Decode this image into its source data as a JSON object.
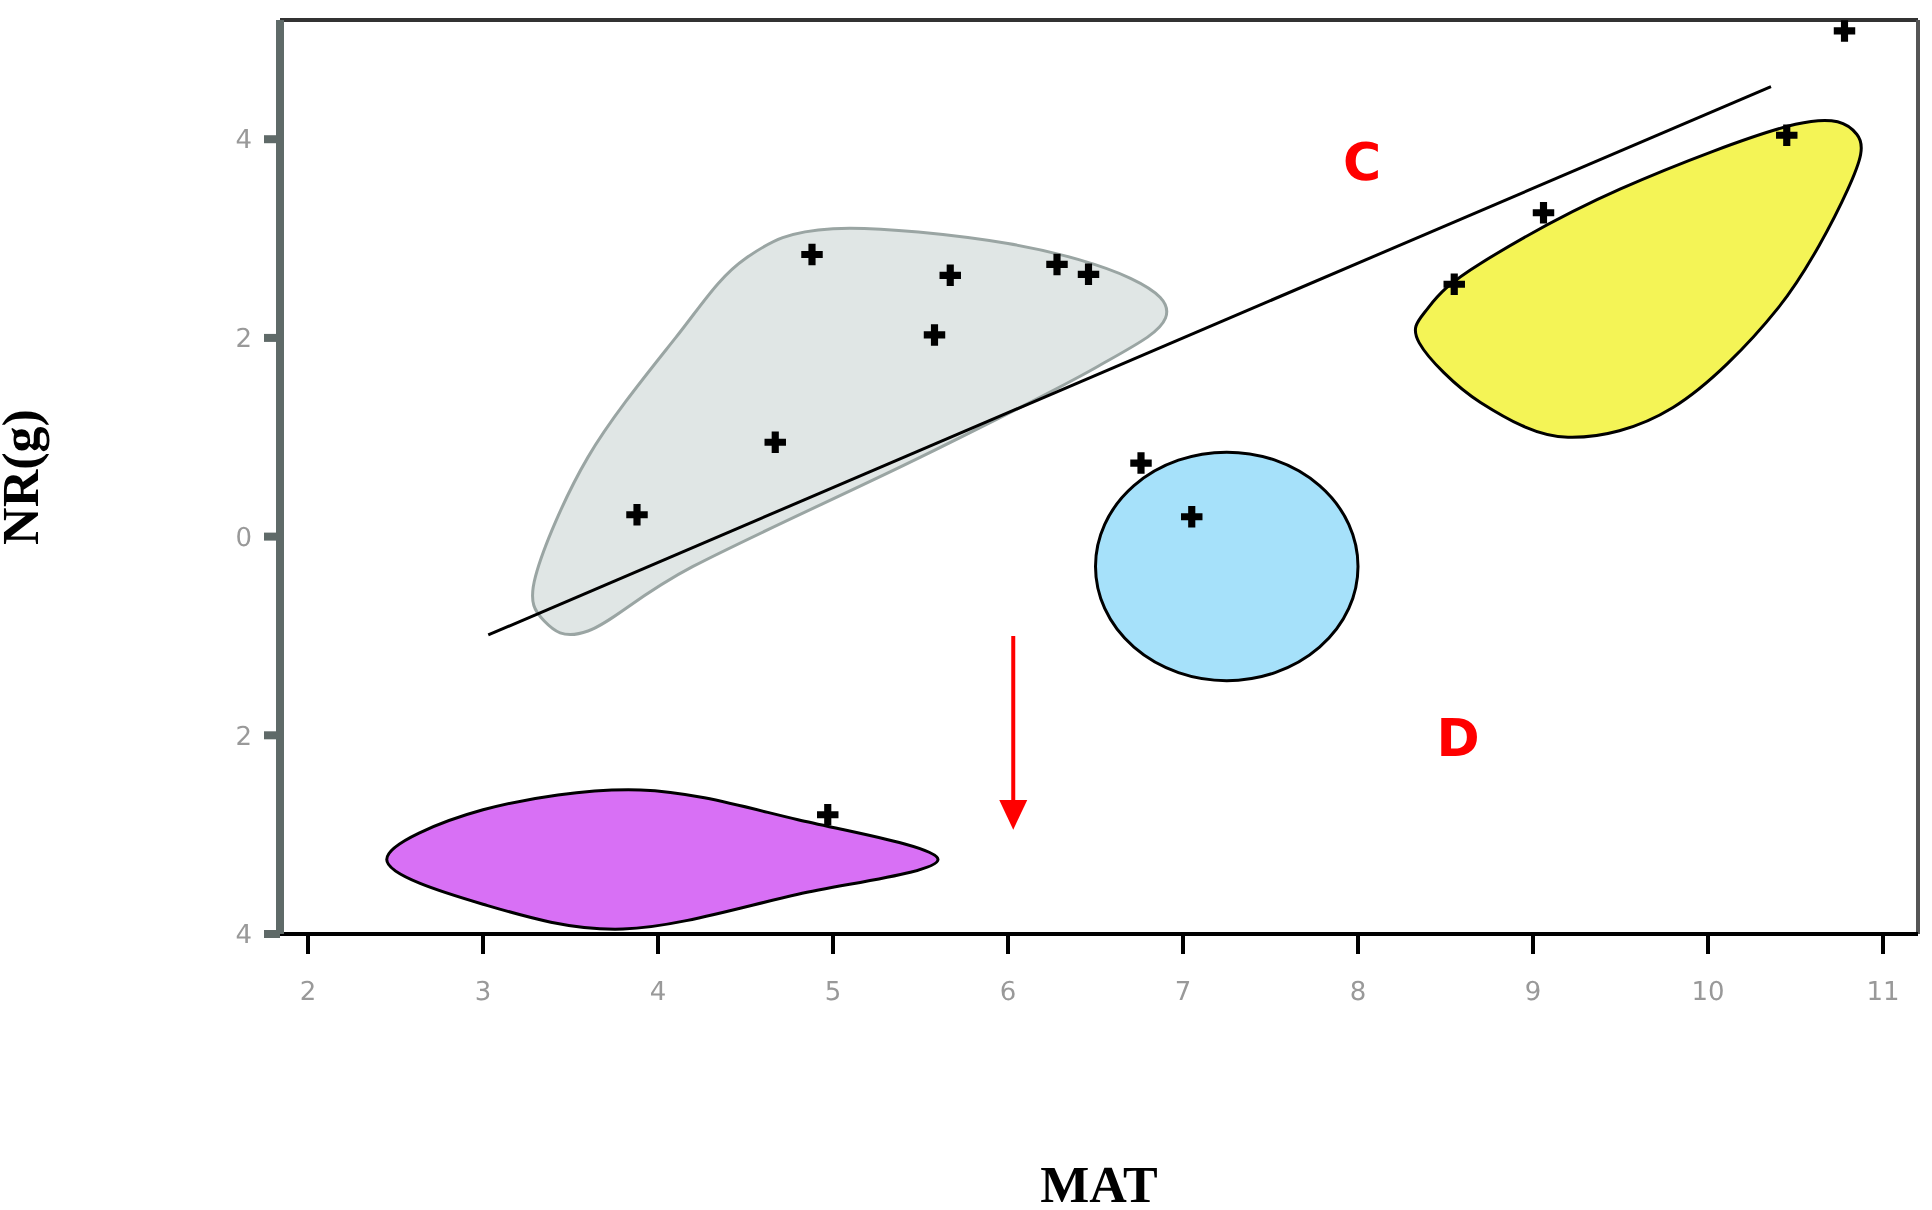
{
  "chart_data": {
    "type": "scatter",
    "xlabel": "MAT",
    "ylabel": "NR(g)",
    "xlim": [
      1.84,
      11.2
    ],
    "xticks": [
      2,
      3,
      4,
      5,
      6,
      7,
      8,
      9,
      10,
      11
    ],
    "ylim": [
      -4,
      5.2
    ],
    "yticks": [
      4,
      2,
      0,
      {
        "value": -2,
        "label": "2"
      },
      {
        "value": -4,
        "label": "4"
      }
    ],
    "series": [
      {
        "color": "#000000",
        "marker": "cross",
        "x": [
          3.88,
          4.67,
          4.88,
          5.67,
          5.58,
          6.28,
          6.46,
          7.05,
          6.76,
          8.55,
          9.06,
          10.45,
          10.78,
          4.97
        ],
        "values": [
          0.22,
          0.95,
          2.84,
          2.63,
          2.03,
          2.74,
          2.64,
          0.2,
          0.74,
          2.54,
          3.26,
          4.04,
          5.09,
          -2.8
        ]
      },
      {
        "type": "line",
        "color": "#000000",
        "x": [
          3.03,
          10.36
        ],
        "values": [
          -0.99,
          4.53
        ]
      }
    ],
    "annotations": [
      "C",
      "D"
    ]
  }
}
